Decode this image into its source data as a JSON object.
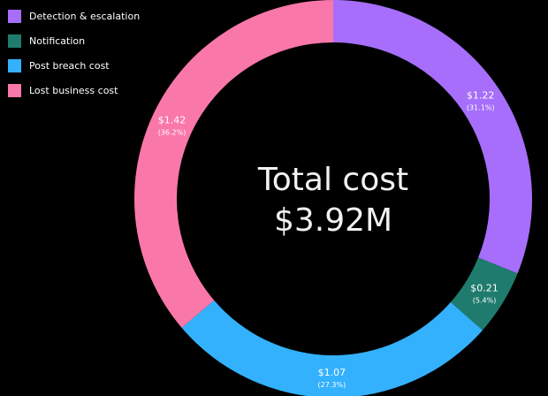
{
  "chart_data": {
    "type": "pie",
    "categories": [
      "Detection & escalation",
      "Notification",
      "Post breach cost",
      "Lost business cost"
    ],
    "values": [
      1.22,
      0.21,
      1.07,
      1.42
    ],
    "value_labels": [
      "$1.22",
      "$0.21",
      "$1.07",
      "$1.42"
    ],
    "percent_labels": [
      "(31.1%)",
      "(5.4%)",
      "(27.3%)",
      "(36.2%)"
    ],
    "colors": [
      "#a66efb",
      "#1f7b6e",
      "#33b1fd",
      "#fa77a9"
    ],
    "center_title": "Total cost",
    "center_value": "$3.92M",
    "legend_position": "top-left",
    "style": "donut"
  }
}
